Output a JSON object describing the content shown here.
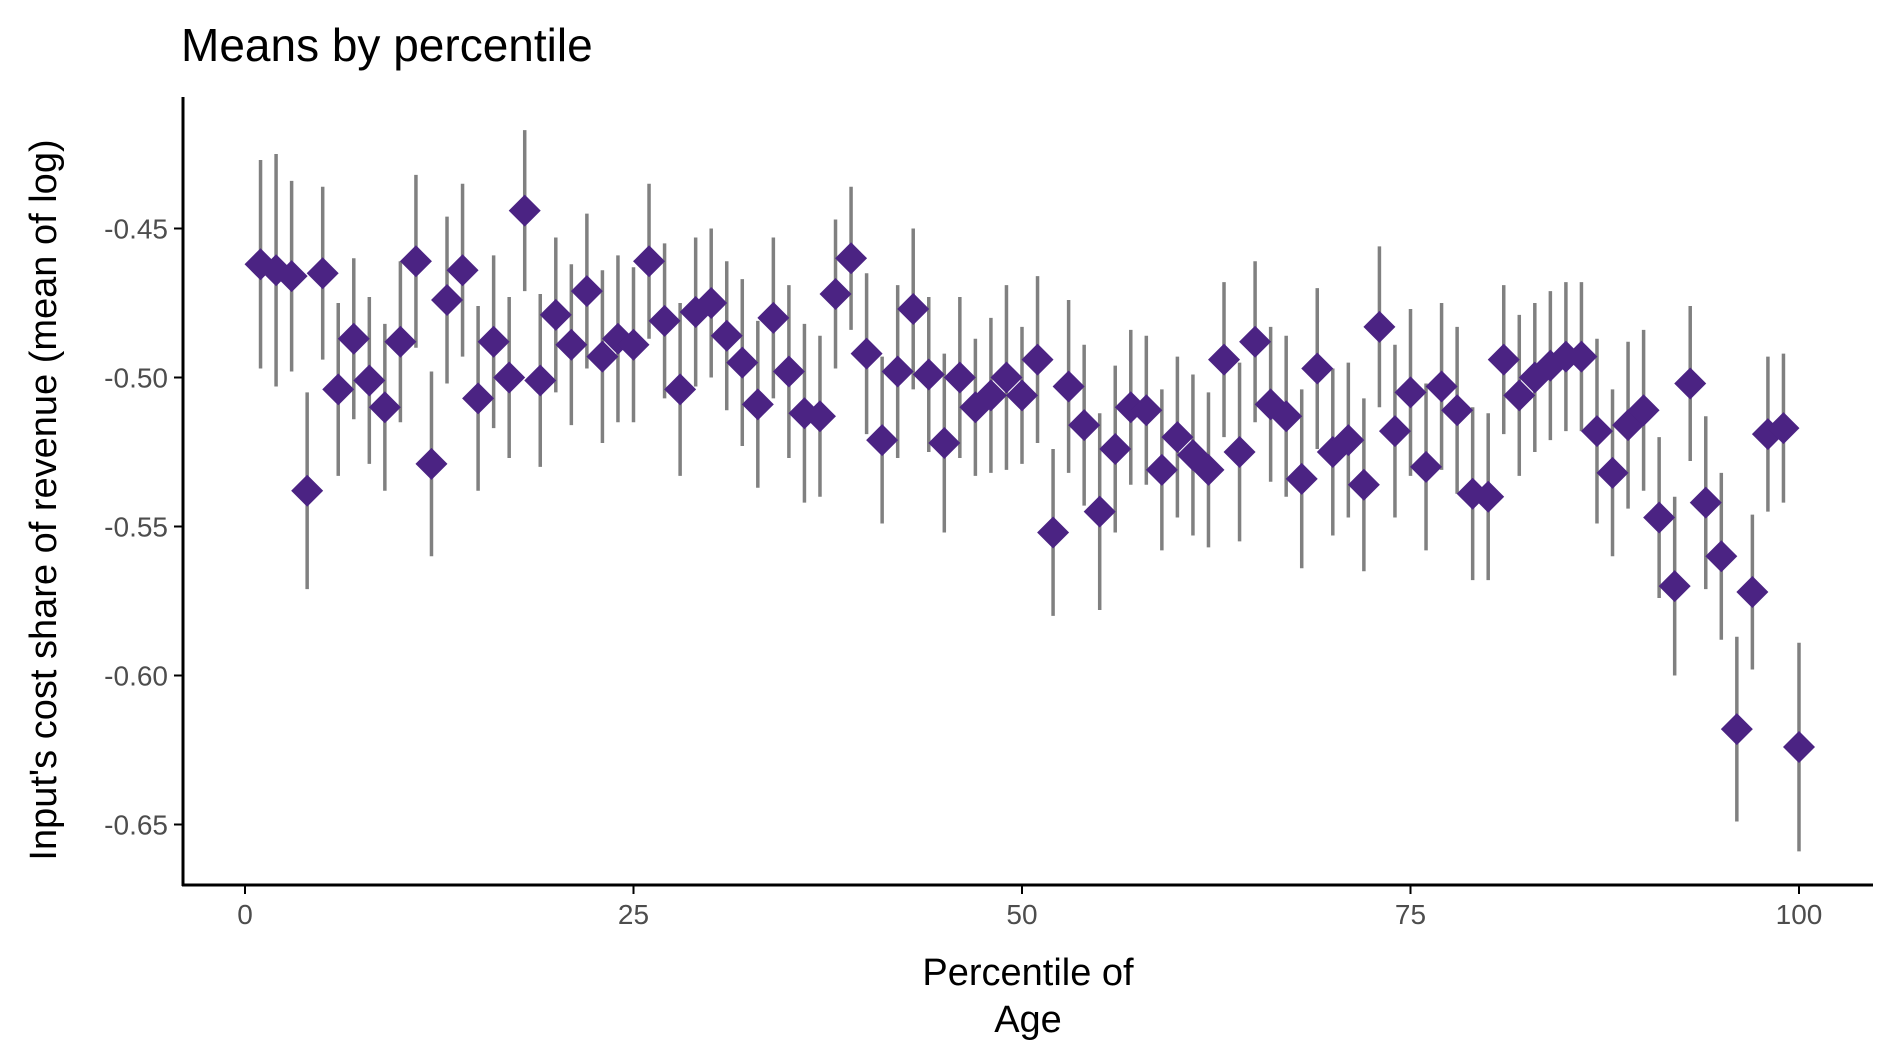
{
  "chart_data": {
    "type": "scatter",
    "title": "Means by percentile",
    "xlabel": [
      "Percentile of",
      "Age"
    ],
    "ylabel": "Input's cost share of revenue (mean of log)",
    "xlim": [
      -4,
      105
    ],
    "ylim": [
      -0.668,
      -0.396
    ],
    "xticks": [
      0,
      25,
      50,
      75,
      100
    ],
    "xtick_labels": [
      "0",
      "25",
      "50",
      "75",
      "100"
    ],
    "yticks": [
      -0.45,
      -0.5,
      -0.55,
      -0.6,
      -0.65
    ],
    "ytick_labels": [
      "-0.45",
      "-0.50",
      "-0.55",
      "-0.60",
      "-0.65"
    ],
    "grid": false,
    "legend": "none",
    "marker": "diamond",
    "colors": {
      "point": "#4b2383",
      "errorbar": "#808080",
      "axis": "#000000"
    },
    "series": [
      {
        "name": "mean",
        "x": [
          1,
          2,
          3,
          4,
          5,
          6,
          7,
          8,
          9,
          10,
          11,
          12,
          13,
          14,
          15,
          16,
          17,
          18,
          19,
          20,
          21,
          22,
          23,
          24,
          25,
          26,
          27,
          28,
          29,
          30,
          31,
          32,
          33,
          34,
          35,
          36,
          37,
          38,
          39,
          40,
          41,
          42,
          43,
          44,
          45,
          46,
          47,
          48,
          49,
          50,
          51,
          52,
          53,
          54,
          55,
          56,
          57,
          58,
          59,
          60,
          61,
          62,
          63,
          64,
          65,
          66,
          67,
          68,
          69,
          70,
          71,
          72,
          73,
          74,
          75,
          76,
          77,
          78,
          79,
          80,
          81,
          82,
          83,
          84,
          85,
          86,
          87,
          88,
          89,
          90,
          91,
          92,
          93,
          94,
          95,
          96,
          97,
          98,
          99,
          100
        ],
        "y": [
          -0.462,
          -0.464,
          -0.466,
          -0.538,
          -0.465,
          -0.504,
          -0.487,
          -0.501,
          -0.51,
          -0.488,
          -0.461,
          -0.529,
          -0.474,
          -0.464,
          -0.507,
          -0.488,
          -0.5,
          -0.444,
          -0.501,
          -0.479,
          -0.489,
          -0.471,
          -0.493,
          -0.487,
          -0.489,
          -0.461,
          -0.481,
          -0.504,
          -0.478,
          -0.475,
          -0.486,
          -0.495,
          -0.509,
          -0.48,
          -0.498,
          -0.512,
          -0.513,
          -0.472,
          -0.46,
          -0.492,
          -0.521,
          -0.498,
          -0.477,
          -0.499,
          -0.522,
          -0.5,
          -0.51,
          -0.506,
          -0.5,
          -0.506,
          -0.494,
          -0.552,
          -0.503,
          -0.516,
          -0.545,
          -0.524,
          -0.51,
          -0.511,
          -0.531,
          -0.52,
          -0.526,
          -0.531,
          -0.494,
          -0.525,
          -0.488,
          -0.509,
          -0.513,
          -0.534,
          -0.497,
          -0.525,
          -0.521,
          -0.536,
          -0.483,
          -0.518,
          -0.505,
          -0.53,
          -0.503,
          -0.511,
          -0.539,
          -0.54,
          -0.494,
          -0.506,
          -0.5,
          -0.496,
          -0.493,
          -0.493,
          -0.518,
          -0.532,
          -0.516,
          -0.511,
          -0.547,
          -0.57,
          -0.502,
          -0.542,
          -0.56,
          -0.618,
          -0.572,
          -0.519,
          -0.517,
          -0.624
        ],
        "lower": [
          -0.497,
          -0.503,
          -0.498,
          -0.571,
          -0.494,
          -0.533,
          -0.514,
          -0.529,
          -0.538,
          -0.515,
          -0.49,
          -0.56,
          -0.502,
          -0.493,
          -0.538,
          -0.517,
          -0.527,
          -0.471,
          -0.53,
          -0.505,
          -0.516,
          -0.497,
          -0.522,
          -0.515,
          -0.515,
          -0.487,
          -0.507,
          -0.533,
          -0.503,
          -0.5,
          -0.511,
          -0.523,
          -0.537,
          -0.507,
          -0.527,
          -0.542,
          -0.54,
          -0.497,
          -0.484,
          -0.519,
          -0.549,
          -0.527,
          -0.504,
          -0.525,
          -0.552,
          -0.527,
          -0.533,
          -0.532,
          -0.531,
          -0.529,
          -0.522,
          -0.58,
          -0.532,
          -0.543,
          -0.578,
          -0.552,
          -0.536,
          -0.536,
          -0.558,
          -0.547,
          -0.553,
          -0.557,
          -0.52,
          -0.555,
          -0.515,
          -0.535,
          -0.54,
          -0.564,
          -0.524,
          -0.553,
          -0.547,
          -0.565,
          -0.51,
          -0.547,
          -0.533,
          -0.558,
          -0.531,
          -0.539,
          -0.568,
          -0.568,
          -0.519,
          -0.533,
          -0.525,
          -0.521,
          -0.518,
          -0.518,
          -0.549,
          -0.56,
          -0.544,
          -0.538,
          -0.574,
          -0.6,
          -0.528,
          -0.571,
          -0.588,
          -0.649,
          -0.598,
          -0.545,
          -0.542,
          -0.659
        ],
        "upper": [
          -0.427,
          -0.425,
          -0.434,
          -0.505,
          -0.436,
          -0.475,
          -0.46,
          -0.473,
          -0.482,
          -0.461,
          -0.432,
          -0.498,
          -0.446,
          -0.435,
          -0.476,
          -0.459,
          -0.473,
          -0.417,
          -0.472,
          -0.453,
          -0.462,
          -0.445,
          -0.464,
          -0.459,
          -0.463,
          -0.435,
          -0.455,
          -0.475,
          -0.453,
          -0.45,
          -0.461,
          -0.467,
          -0.481,
          -0.453,
          -0.469,
          -0.482,
          -0.486,
          -0.447,
          -0.436,
          -0.465,
          -0.493,
          -0.469,
          -0.45,
          -0.473,
          -0.492,
          -0.473,
          -0.487,
          -0.48,
          -0.469,
          -0.483,
          -0.466,
          -0.524,
          -0.474,
          -0.489,
          -0.512,
          -0.496,
          -0.484,
          -0.486,
          -0.504,
          -0.493,
          -0.499,
          -0.505,
          -0.468,
          -0.495,
          -0.461,
          -0.483,
          -0.486,
          -0.504,
          -0.47,
          -0.497,
          -0.495,
          -0.507,
          -0.456,
          -0.489,
          -0.477,
          -0.502,
          -0.475,
          -0.483,
          -0.51,
          -0.512,
          -0.469,
          -0.479,
          -0.475,
          -0.471,
          -0.468,
          -0.468,
          -0.487,
          -0.504,
          -0.488,
          -0.484,
          -0.52,
          -0.54,
          -0.476,
          -0.513,
          -0.532,
          -0.587,
          -0.546,
          -0.493,
          -0.492,
          -0.589
        ]
      }
    ]
  }
}
